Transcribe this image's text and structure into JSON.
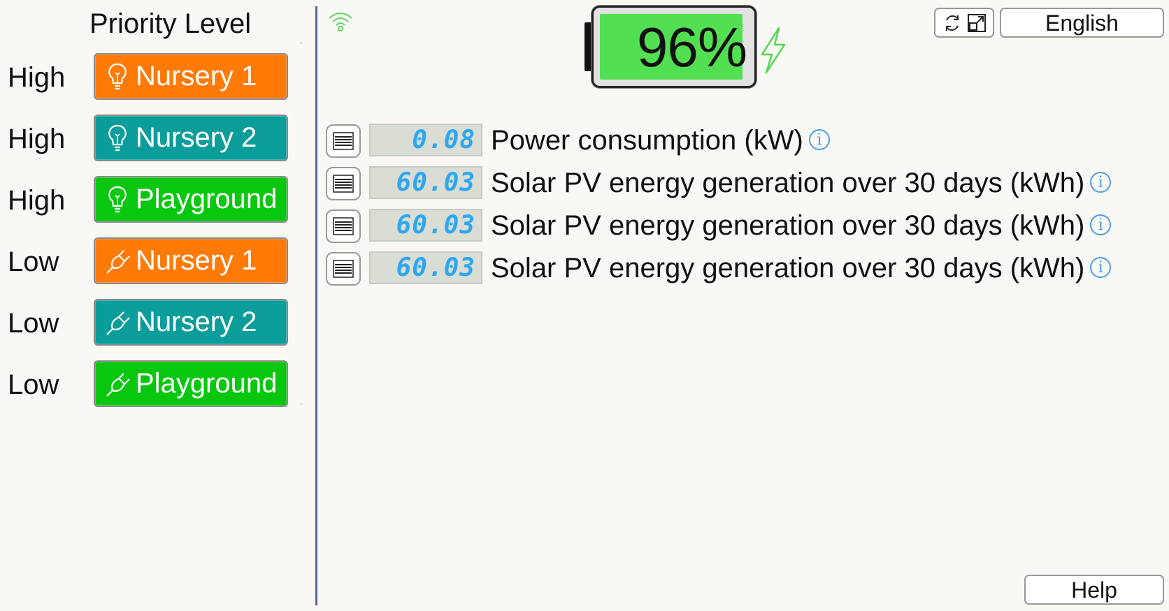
{
  "priority": {
    "header": "Priority Level",
    "rows": [
      {
        "level": "High",
        "zone": "Nursery 1",
        "icon": "lightbulb-icon",
        "color": "#ff7a06"
      },
      {
        "level": "High",
        "zone": "Nursery 2",
        "icon": "lightbulb-icon",
        "color": "#0b9d9a"
      },
      {
        "level": "High",
        "zone": "Playground",
        "icon": "lightbulb-icon",
        "color": "#08c70e"
      },
      {
        "level": "Low",
        "zone": "Nursery 1",
        "icon": "plug-icon",
        "color": "#ff7a06"
      },
      {
        "level": "Low",
        "zone": "Nursery 2",
        "icon": "plug-icon",
        "color": "#0b9d9a"
      },
      {
        "level": "Low",
        "zone": "Playground",
        "icon": "plug-icon",
        "color": "#08c70e"
      }
    ]
  },
  "battery": {
    "percent_label": "96%",
    "level": 0.96,
    "charging": true,
    "fill_color": "#52e052"
  },
  "status": {
    "wifi_icon": "wifi-icon",
    "wifi_color": "#5dd45d"
  },
  "toolbar": {
    "refresh_icon": "refresh-icon",
    "fullscreen_icon": "fullscreen-icon"
  },
  "language": {
    "label": "English"
  },
  "help": {
    "label": "Help"
  },
  "readings": [
    {
      "value": "0.08",
      "label": "Power consumption (kW)"
    },
    {
      "value": "60.03",
      "label": "Solar PV energy generation over 30 days (kWh)"
    },
    {
      "value": "60.03",
      "label": "Solar PV energy generation over 30 days (kWh)"
    },
    {
      "value": "60.03",
      "label": "Solar PV energy generation over 30 days (kWh)"
    }
  ]
}
